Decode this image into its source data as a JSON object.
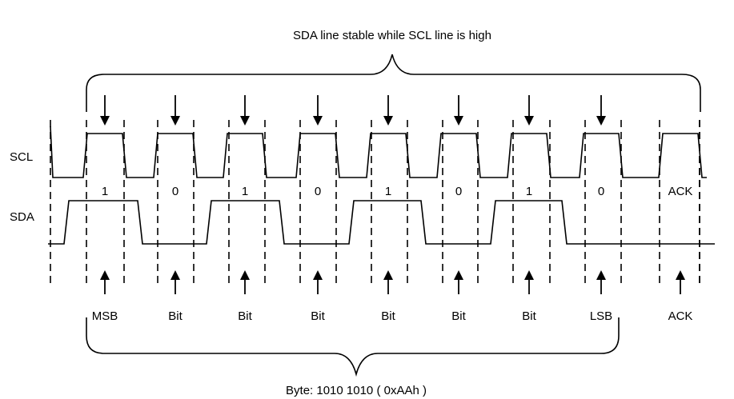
{
  "top_caption": "SDA line stable while SCL line is high",
  "bottom_caption": "Byte: 1010 1010 ( 0xAAh )",
  "signals": {
    "scl": "SCL",
    "sda": "SDA"
  },
  "bits": [
    {
      "value": "1",
      "label": "MSB"
    },
    {
      "value": "0",
      "label": "Bit"
    },
    {
      "value": "1",
      "label": "Bit"
    },
    {
      "value": "0",
      "label": "Bit"
    },
    {
      "value": "1",
      "label": "Bit"
    },
    {
      "value": "0",
      "label": "Bit"
    },
    {
      "value": "1",
      "label": "Bit"
    },
    {
      "value": "0",
      "label": "LSB"
    },
    {
      "value": "ACK",
      "label": "ACK"
    }
  ]
}
